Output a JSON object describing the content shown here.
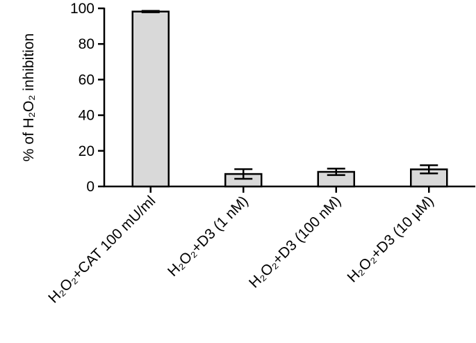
{
  "chart_data": {
    "type": "bar",
    "y_label": "% of H₂O₂ inhibition",
    "categories": [
      "H₂O₂+CAT 100 mU/ml",
      "H₂O₂+D3 (1 nM)",
      "H₂O₂+D3 (100 nM)",
      "H₂O₂+D3 (10 µM)"
    ],
    "values": [
      98.2,
      7,
      8.2,
      9.6
    ],
    "errors": [
      0.4,
      2.7,
      1.8,
      2.3
    ],
    "color": "#d9d9d9",
    "ylim": [
      0,
      100
    ],
    "yticks": [
      0,
      20,
      40,
      60,
      80,
      100
    ]
  }
}
